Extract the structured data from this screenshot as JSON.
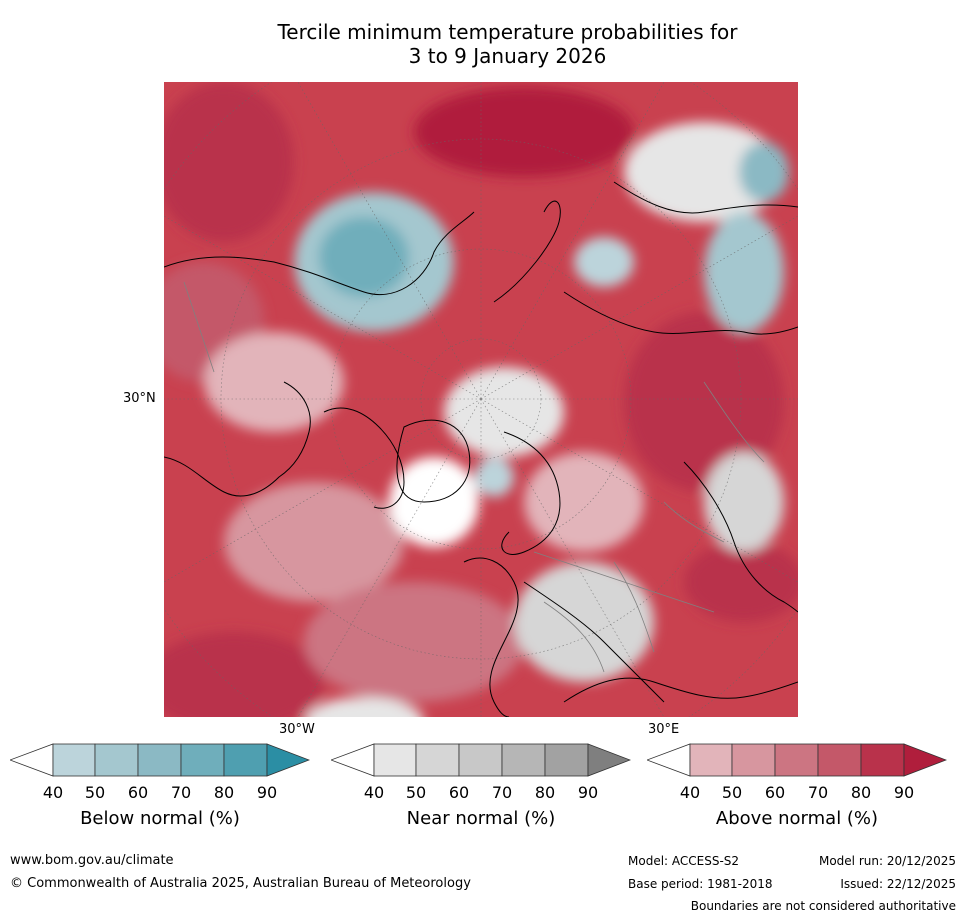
{
  "title": {
    "line1": "Tercile minimum temperature probabilities for",
    "line2": "3 to 9 January 2026"
  },
  "map": {
    "lat_label": "30°N",
    "lon_labels": [
      "30°W",
      "30°E"
    ]
  },
  "colorbars": [
    {
      "label": "Below normal (%)",
      "ticks": [
        "40",
        "50",
        "60",
        "70",
        "80",
        "90"
      ],
      "colors": [
        "#ffffff",
        "#bcd4db",
        "#a4c7cf",
        "#8bb9c4",
        "#6faebb",
        "#4f9fb0",
        "#2b8ea4"
      ]
    },
    {
      "label": "Near normal (%)",
      "ticks": [
        "40",
        "50",
        "60",
        "70",
        "80",
        "90"
      ],
      "colors": [
        "#ffffff",
        "#e6e6e6",
        "#d6d6d6",
        "#c8c8c8",
        "#b6b6b6",
        "#a2a2a2",
        "#7f7f7f"
      ]
    },
    {
      "label": "Above normal (%)",
      "ticks": [
        "40",
        "50",
        "60",
        "70",
        "80",
        "90"
      ],
      "colors": [
        "#ffffff",
        "#e2b4ba",
        "#d7969f",
        "#cc7582",
        "#c45869",
        "#b9324b",
        "#b01e3c"
      ]
    }
  ],
  "footer": {
    "website": "www.bom.gov.au/climate",
    "copyright": "© Commonwealth of Australia 2025, Australian Bureau of Meteorology",
    "model": "Model: ACCESS-S2",
    "model_run": "Model run: 20/12/2025",
    "base_period": "Base period: 1981-2018",
    "issued": "Issued: 22/12/2025",
    "disclaimer": "Boundaries are not considered authoritative"
  }
}
